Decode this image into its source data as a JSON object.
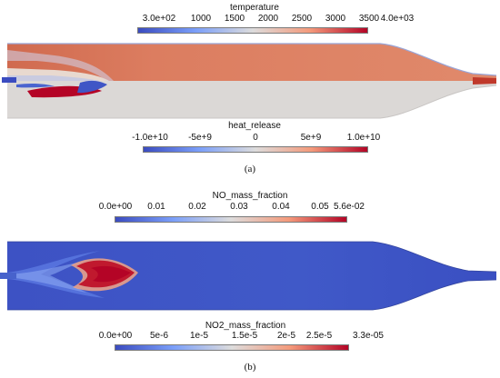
{
  "panel_a": {
    "caption": "(a)",
    "temperature_bar": {
      "title": "temperature",
      "ticks": [
        "3.0e+02",
        "1000",
        "1500",
        "2000",
        "2500",
        "3000",
        "3500",
        "4.0e+03"
      ],
      "colormap": "cool-to-warm"
    },
    "heat_release_bar": {
      "title": "heat_release",
      "ticks": [
        "-1.0e+10",
        "-5e+9",
        "0",
        "5e+9",
        "1.0e+10"
      ],
      "colormap": "cool-to-warm"
    }
  },
  "panel_b": {
    "caption": "(b)",
    "no_bar": {
      "title": "NO_mass_fraction",
      "ticks": [
        "0.0e+00",
        "0.01",
        "0.02",
        "0.03",
        "0.04",
        "0.05",
        "5.6e-02"
      ],
      "colormap": "cool-to-warm"
    },
    "no2_bar": {
      "title": "NO2_mass_fraction",
      "ticks": [
        "0.0e+00",
        "5e-6",
        "1e-5",
        "1.5e-5",
        "2e-5",
        "2.5e-5",
        "3.3e-05"
      ],
      "colormap": "cool-to-warm"
    }
  },
  "colors": {
    "cold_blue": "#3b4cc0",
    "neutral": "#dddcdc",
    "hot_red": "#b40426"
  }
}
